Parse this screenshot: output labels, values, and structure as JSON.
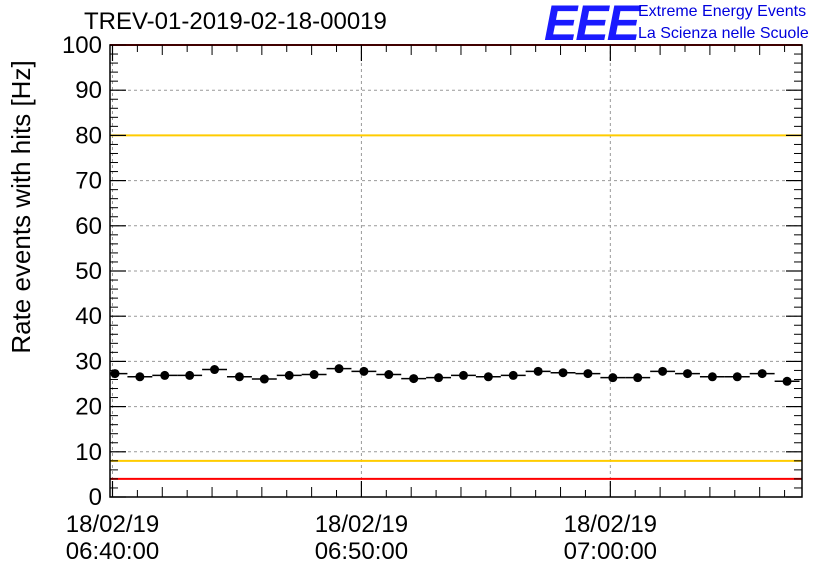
{
  "title": "TREV-01-2019-02-18-00019",
  "logo": {
    "mark": "EEE",
    "line1": "Extreme Energy Events",
    "line2": "La Scienza nelle Scuole"
  },
  "colors": {
    "red_line": "#ff0000",
    "yellow_line": "#ffcc00",
    "grid": "#999999",
    "marker": "#000000",
    "logo": "#1a1aff"
  },
  "chart_data": {
    "type": "scatter",
    "title": "TREV-01-2019-02-18-00019",
    "xlabel": "",
    "ylabel": "Rate events with hits [Hz]",
    "ylim": [
      0,
      100
    ],
    "yticks": [
      0,
      10,
      20,
      30,
      40,
      50,
      60,
      70,
      80,
      90,
      100
    ],
    "x_unit": "minutes since 06:40:00",
    "xlim": [
      -0.1,
      27.7
    ],
    "xticks": [
      {
        "value": 0,
        "date": "18/02/19",
        "time": "06:40:00"
      },
      {
        "value": 10,
        "date": "18/02/19",
        "time": "06:50:00"
      },
      {
        "value": 20,
        "date": "18/02/19",
        "time": "07:00:00"
      }
    ],
    "bin_width_min": 1,
    "series": [
      {
        "name": "rate",
        "x": [
          0.1,
          1.1,
          2.1,
          3.1,
          4.1,
          5.1,
          6.1,
          7.1,
          8.1,
          9.1,
          10.1,
          11.1,
          12.1,
          13.1,
          14.1,
          15.1,
          16.1,
          17.1,
          18.1,
          19.1,
          20.1,
          21.1,
          22.1,
          23.1,
          24.1,
          25.1,
          26.1,
          27.1
        ],
        "y": [
          27.3,
          26.6,
          26.9,
          26.9,
          28.2,
          26.6,
          26.1,
          26.9,
          27.1,
          28.4,
          27.8,
          27.1,
          26.2,
          26.4,
          26.9,
          26.6,
          26.9,
          27.8,
          27.5,
          27.3,
          26.4,
          26.4,
          27.8,
          27.3,
          26.6,
          26.6,
          27.3,
          25.6
        ]
      }
    ],
    "reference_lines": [
      {
        "name": "upper-red",
        "y": 100,
        "color": "#ff0000"
      },
      {
        "name": "upper-yellow",
        "y": 80,
        "color": "#ffcc00"
      },
      {
        "name": "lower-yellow",
        "y": 8,
        "color": "#ffcc00"
      },
      {
        "name": "lower-red",
        "y": 4,
        "color": "#ff0000"
      }
    ],
    "grid": true
  }
}
